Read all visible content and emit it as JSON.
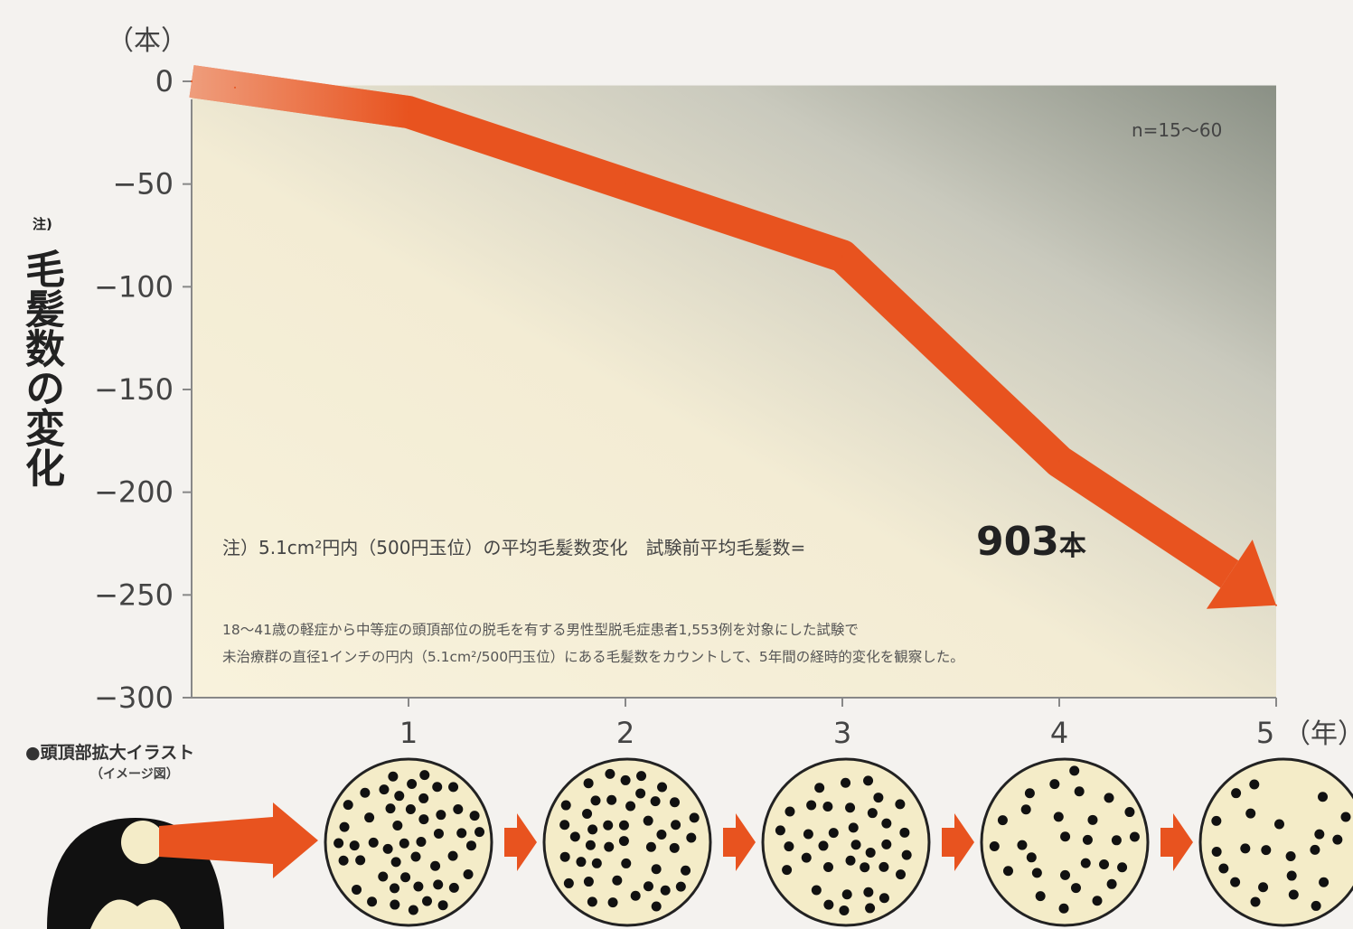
{
  "chart_data": {
    "type": "line",
    "ylabel": "毛髪数の変化",
    "ylabel_note": "注)",
    "y_unit": "（本）",
    "x_unit": "（年）",
    "x": [
      0,
      0.2,
      1,
      2,
      3,
      4,
      5
    ],
    "series": [
      {
        "values": [
          0,
          -3,
          -15,
          -50,
          -85,
          -185,
          -255
        ]
      }
    ],
    "x_ticks": [
      "1",
      "2",
      "3",
      "4",
      "5"
    ],
    "y_ticks": [
      "0",
      "−50",
      "−100",
      "−150",
      "−200",
      "−250",
      "−300"
    ],
    "xlim": [
      0,
      5
    ],
    "ylim": [
      -300,
      0
    ],
    "grid": false,
    "annotations": {
      "n_note": "n=15〜60",
      "note1": "注）5.1cm²円内（500円玉位）の平均毛髪数変化　試験前平均毛髪数=",
      "big_number": "903",
      "big_unit": "本",
      "note2_line1": "18〜41歳の軽症から中等症の頭頂部位の脱毛を有する男性型脱毛症患者1,553例を対象にした試験で",
      "note2_line2": "未治療群の直径1インチの円内（5.1cm²/500円玉位）にある毛髪数をカウントして、5年間の経時的変化を観察した。"
    },
    "colors": {
      "arrow": "#e8531f",
      "panel_light": "#f7f1d8",
      "panel_dark": "#8f9489",
      "dots_bg": "#f4ecc8"
    }
  },
  "illustration": {
    "title": "●頭頂部拡大イラスト",
    "subtitle": "（イメージ図）",
    "dot_counts": [
      48,
      44,
      36,
      28,
      22
    ]
  }
}
